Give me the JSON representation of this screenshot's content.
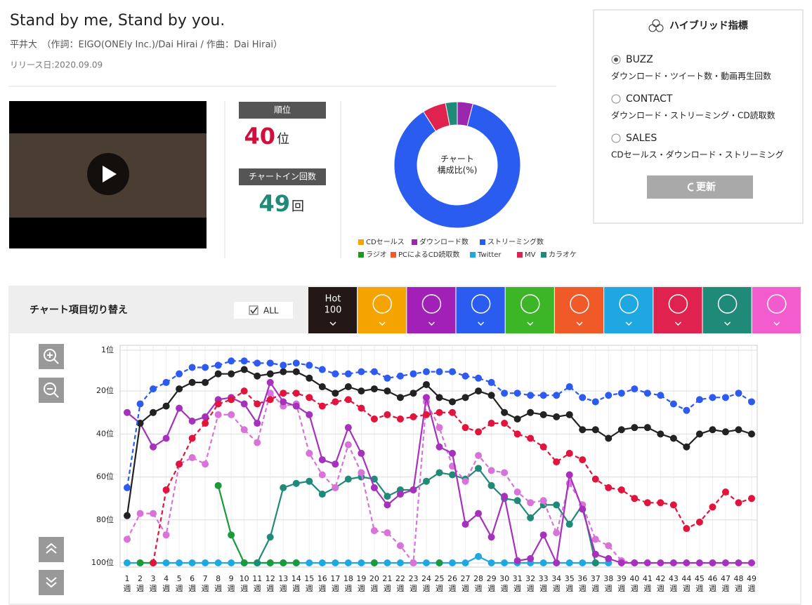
{
  "header": {
    "title": "Stand by me, Stand by you.",
    "credits": "平井大　（作詞：EIGO(ONEly Inc.)/Dai Hirai / 作曲：Dai Hirai）",
    "release": "リリース日:2020.09.09"
  },
  "rank": {
    "label": "順位",
    "value": 40,
    "unit": "位"
  },
  "chart_in": {
    "label": "チャートイン回数",
    "value": 49,
    "unit": "回"
  },
  "hybrid": {
    "title": "ハイブリッド指標",
    "button": "更新",
    "options": [
      {
        "label": "BUZZ",
        "description": "ダウンロード・ツイート数・動画再生回数",
        "selected": true
      },
      {
        "label": "CONTACT",
        "description": "ダウンロード・ストリーミング・CD読取数",
        "selected": false
      },
      {
        "label": "SALES",
        "description": "CDセールス・ダウンロード・ストリーミング",
        "selected": false
      }
    ]
  },
  "switcher": {
    "title": "チャート項目切り替え",
    "all": "ALL",
    "tabs": [
      {
        "color": "#231815",
        "label": [
          "Hot",
          "100"
        ]
      },
      {
        "color": "#f5a300"
      },
      {
        "color": "#a020b8"
      },
      {
        "color": "#2a5cf0"
      },
      {
        "color": "#3cb526"
      },
      {
        "color": "#f05a28"
      },
      {
        "color": "#1ea7e1"
      },
      {
        "color": "#e0224e"
      },
      {
        "color": "#1f8a78"
      },
      {
        "color": "#f25ccf"
      }
    ]
  },
  "chart_data": [
    {
      "type": "pie",
      "center_label": [
        "チャート",
        "構成比(%)"
      ],
      "categories": [
        "CDセールス",
        "ダウンロード数",
        "ストリーミング数",
        "ラジオ",
        "PCによるCD読取数",
        "Twitter",
        "MV",
        "カラオケ"
      ],
      "colors": [
        "#f5a300",
        "#9b27af",
        "#2a5cf0",
        "#1a9a1a",
        "#f05a28",
        "#1ea7e1",
        "#e0224e",
        "#1f8a78"
      ],
      "values": [
        0,
        4,
        87,
        0,
        0,
        0,
        6,
        3
      ]
    },
    {
      "type": "line",
      "x_unit": "週",
      "categories": [
        1,
        2,
        3,
        4,
        5,
        6,
        7,
        8,
        9,
        10,
        11,
        12,
        13,
        14,
        15,
        16,
        17,
        18,
        19,
        20,
        21,
        22,
        23,
        24,
        25,
        26,
        27,
        28,
        29,
        30,
        31,
        32,
        33,
        34,
        35,
        36,
        37,
        38,
        39,
        40,
        41,
        42,
        43,
        44,
        45,
        46,
        47,
        48,
        49
      ],
      "ylim": [
        1,
        100
      ],
      "y_inverted": true,
      "grid": true,
      "yticks": [
        {
          "value": 1,
          "label": "1位"
        },
        {
          "value": 20,
          "label": "20位"
        },
        {
          "value": 40,
          "label": "40位"
        },
        {
          "value": 60,
          "label": "60位"
        },
        {
          "value": 80,
          "label": "80位"
        },
        {
          "value": 100,
          "label": "100位"
        }
      ],
      "series": [
        {
          "color": "#1ea7e1",
          "dashed": false,
          "values": [
            100,
            100,
            100,
            100,
            100,
            100,
            100,
            100,
            100,
            100,
            100,
            100,
            100,
            100,
            100,
            100,
            100,
            100,
            100,
            100,
            100,
            100,
            100,
            100,
            100,
            100,
            100,
            97,
            100,
            100,
            100,
            100,
            100,
            100,
            100,
            100,
            100,
            100,
            null,
            null,
            null,
            null,
            null,
            null,
            null,
            null,
            null,
            null,
            null
          ]
        },
        {
          "color": "#1a9a3a",
          "dashed": false,
          "values": [
            null,
            100,
            100,
            null,
            null,
            null,
            null,
            64,
            87,
            100,
            100,
            100,
            100,
            100,
            null,
            null,
            null,
            null,
            null,
            100,
            null,
            null,
            null,
            null,
            100,
            null,
            null,
            null,
            null,
            null,
            null,
            null,
            null,
            null,
            null,
            null,
            100,
            null,
            null,
            null,
            null,
            null,
            null,
            null,
            null,
            null,
            null,
            null,
            null
          ]
        },
        {
          "color": "#1f8a78",
          "dashed": false,
          "values": [
            null,
            null,
            null,
            null,
            null,
            null,
            null,
            null,
            null,
            null,
            100,
            88,
            65,
            63,
            62,
            68,
            65,
            61,
            60,
            61,
            69,
            66,
            66,
            62,
            58,
            59,
            61,
            56,
            64,
            70,
            71,
            79,
            73,
            73,
            82,
            73,
            100,
            null,
            null,
            null,
            null,
            null,
            null,
            null,
            null,
            null,
            null,
            null,
            null
          ]
        },
        {
          "color": "#d773d9",
          "dashed": true,
          "values": [
            89,
            77,
            77,
            87,
            54,
            51,
            54,
            31,
            31,
            38,
            44,
            21,
            27,
            26,
            49,
            59,
            65,
            45,
            58,
            85,
            86,
            92,
            100,
            25,
            37,
            55,
            62,
            50,
            57,
            58,
            67,
            72,
            71,
            86,
            63,
            73,
            89,
            92,
            99,
            100,
            null,
            null,
            null,
            null,
            null,
            null,
            null,
            null,
            null
          ]
        },
        {
          "color": "#a631bd",
          "dashed": false,
          "values": [
            30,
            35,
            46,
            42,
            28,
            34,
            32,
            24,
            23,
            26,
            35,
            16,
            25,
            27,
            31,
            52,
            54,
            37,
            49,
            65,
            73,
            68,
            66,
            23,
            46,
            49,
            82,
            77,
            88,
            69,
            99,
            98,
            87,
            100,
            59,
            75,
            96,
            98,
            100,
            100,
            100,
            100,
            100,
            100,
            100,
            100,
            100,
            100,
            100
          ]
        },
        {
          "color": "#e0143c",
          "dashed": true,
          "values": [
            null,
            null,
            100,
            66,
            54,
            42,
            35,
            26,
            24,
            20,
            26,
            24,
            21,
            21,
            23,
            27,
            25,
            24,
            28,
            33,
            31,
            33,
            32,
            31,
            30,
            30,
            37,
            39,
            35,
            35,
            40,
            42,
            46,
            53,
            49,
            52,
            61,
            65,
            66,
            70,
            72,
            72,
            73,
            84,
            81,
            74,
            67,
            72,
            70
          ]
        },
        {
          "color": "#222222",
          "dashed": false,
          "values": [
            78,
            35,
            30,
            27,
            19,
            16,
            16,
            12,
            12,
            10,
            13,
            12,
            11,
            11,
            14,
            18,
            21,
            18,
            20,
            19,
            20,
            23,
            21,
            17,
            23,
            25,
            23,
            20,
            22,
            30,
            33,
            30,
            31,
            32,
            31,
            38,
            38,
            42,
            38,
            37,
            37,
            40,
            42,
            46,
            40,
            38,
            39,
            38,
            40
          ]
        },
        {
          "color": "#2d5bef",
          "dashed": true,
          "values": [
            65,
            26,
            19,
            16,
            12,
            9,
            9,
            8,
            6,
            6,
            7,
            7,
            8,
            7,
            8,
            10,
            12,
            12,
            11,
            11,
            14,
            13,
            12,
            11,
            11,
            11,
            13,
            14,
            16,
            21,
            21,
            22,
            22,
            22,
            18,
            23,
            25,
            22,
            21,
            19,
            21,
            22,
            26,
            29,
            24,
            23,
            23,
            21,
            25
          ]
        }
      ]
    }
  ]
}
